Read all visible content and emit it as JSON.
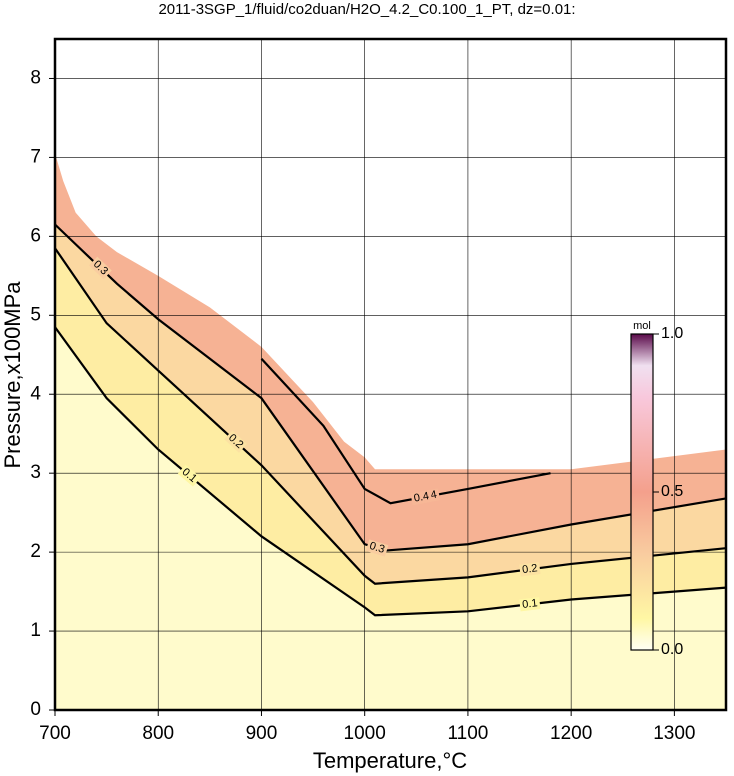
{
  "chart_data": {
    "type": "contour",
    "title": "2011-3SGP_1/fluid/co2duan/H2O_4.2_C0.100_1_PT, dz=0.01:",
    "x_label": "Temperature,°C",
    "y_label": "Pressure,x100MPa",
    "xlim": [
      700,
      1350
    ],
    "xticks": [
      700,
      800,
      900,
      1000,
      1100,
      1200,
      1300
    ],
    "ylim": [
      0,
      8.5
    ],
    "yticks": [
      0,
      1,
      2,
      3,
      4,
      5,
      6,
      7,
      8
    ],
    "grid": true,
    "colormap": [
      {
        "value": 0,
        "color": "#fffff4"
      },
      {
        "value": 0.1,
        "color": "#fff7a4"
      },
      {
        "value": 0.3,
        "color": "#f9cda0"
      },
      {
        "value": 0.5,
        "color": "#f4a08c"
      },
      {
        "value": 0.8,
        "color": "#f8c8dc"
      },
      {
        "value": 0.9,
        "color": "#f0e0f0"
      },
      {
        "value": 1,
        "color": "#5a0a4a"
      }
    ],
    "colorbar": {
      "label": "mol",
      "lim": [
        0,
        1
      ],
      "ticks": [
        {
          "value": 0,
          "label": "0.0"
        },
        {
          "value": 0.5,
          "label": "0.5"
        },
        {
          "value": 1,
          "label": "1.0"
        }
      ]
    },
    "boundary": {
      "x": [
        700,
        708,
        720,
        740,
        760,
        800,
        850,
        900,
        950,
        980,
        1000,
        1010,
        1200,
        1350,
        1350,
        700
      ],
      "y": [
        7.05,
        6.7,
        6.3,
        6.0,
        5.8,
        5.5,
        5.1,
        4.6,
        3.9,
        3.4,
        3.2,
        3.05,
        3.05,
        3.3,
        0,
        0
      ]
    },
    "contours": [
      {
        "level": 0.4,
        "x": [
          900,
          960,
          1000,
          1025,
          1100,
          1180
        ],
        "y": [
          4.45,
          3.6,
          2.8,
          2.62,
          2.8,
          3.0
        ]
      },
      {
        "level": 0.3,
        "x": [
          700,
          720,
          760,
          800,
          900,
          1000,
          1020,
          1100,
          1200,
          1350
        ],
        "y": [
          6.15,
          5.9,
          5.4,
          4.95,
          3.95,
          2.1,
          2.02,
          2.1,
          2.35,
          2.68
        ]
      },
      {
        "level": 0.2,
        "x": [
          700,
          750,
          800,
          900,
          1000,
          1010,
          1100,
          1200,
          1350
        ],
        "y": [
          5.85,
          4.9,
          4.3,
          3.1,
          1.7,
          1.6,
          1.68,
          1.85,
          2.05
        ]
      },
      {
        "level": 0.1,
        "x": [
          700,
          750,
          800,
          900,
          1000,
          1010,
          1100,
          1200,
          1350
        ],
        "y": [
          4.85,
          3.95,
          3.3,
          2.2,
          1.3,
          1.2,
          1.25,
          1.4,
          1.55
        ]
      }
    ]
  }
}
